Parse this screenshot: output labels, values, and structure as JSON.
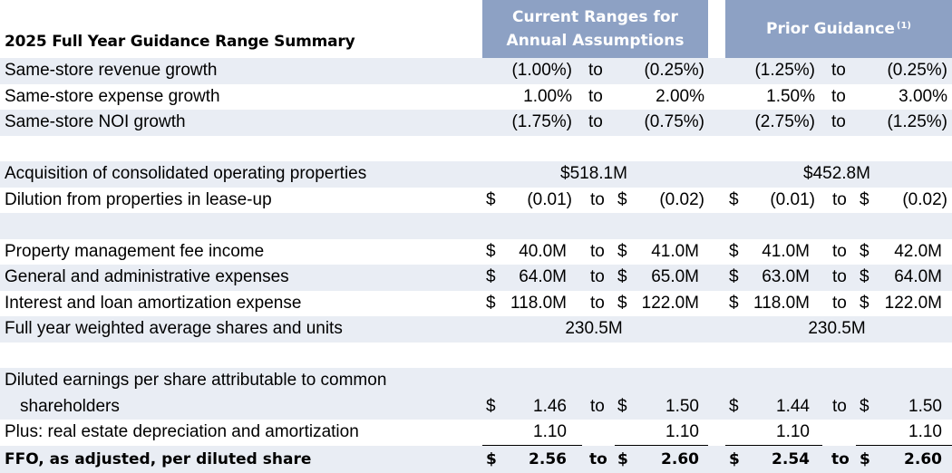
{
  "header": {
    "title": "2025 Full Year Guidance Range Summary",
    "current_line1": "Current Ranges for",
    "current_line2": "Annual Assumptions",
    "prior_label": "Prior Guidance",
    "prior_footnote": "(1)"
  },
  "rows": {
    "rev": {
      "label": "Same-store revenue growth",
      "c_lo": "(1.00%)",
      "c_to": "to",
      "c_hi": "(0.25%)",
      "p_lo": "(1.25%)",
      "p_to": "to",
      "p_hi": "(0.25%)"
    },
    "exp": {
      "label": "Same-store expense growth",
      "c_lo": "1.00%",
      "c_to": "to",
      "c_hi": "2.00%",
      "p_lo": "1.50%",
      "p_to": "to",
      "p_hi": "3.00%"
    },
    "noi": {
      "label": "Same-store NOI growth",
      "c_lo": "(1.75%)",
      "c_to": "to",
      "c_hi": "(0.75%)",
      "p_lo": "(2.75%)",
      "p_to": "to",
      "p_hi": "(1.25%)"
    },
    "acq": {
      "label": "Acquisition of consolidated operating properties",
      "c": "$518.1M",
      "p": "$452.8M"
    },
    "dil": {
      "label": "Dilution from properties in lease-up",
      "c_d1": "$",
      "c_lo": "(0.01)",
      "c_to": "to",
      "c_d2": "$",
      "c_hi": "(0.02)",
      "p_d1": "$",
      "p_lo": "(0.01)",
      "p_to": "to",
      "p_d2": "$",
      "p_hi": "(0.02)"
    },
    "fee": {
      "label": "Property management fee income",
      "c_d1": "$",
      "c_lo": "40.0M",
      "c_to": "to",
      "c_d2": "$",
      "c_hi": "41.0M",
      "p_d1": "$",
      "p_lo": "41.0M",
      "p_to": "to",
      "p_d2": "$",
      "p_hi": "42.0M"
    },
    "gna": {
      "label": "General and administrative expenses",
      "c_d1": "$",
      "c_lo": "64.0M",
      "c_to": "to",
      "c_d2": "$",
      "c_hi": "65.0M",
      "p_d1": "$",
      "p_lo": "63.0M",
      "p_to": "to",
      "p_d2": "$",
      "p_hi": "64.0M"
    },
    "int": {
      "label": "Interest and loan amortization expense",
      "c_d1": "$",
      "c_lo": "118.0M",
      "c_to": "to",
      "c_d2": "$",
      "c_hi": "122.0M",
      "p_d1": "$",
      "p_lo": "118.0M",
      "p_to": "to",
      "p_d2": "$",
      "p_hi": "122.0M"
    },
    "shr": {
      "label": "Full year weighted average shares and units",
      "c": "230.5M",
      "p": "230.5M"
    },
    "eps": {
      "label1": "Diluted earnings per share attributable to common",
      "label2": "shareholders",
      "c_d1": "$",
      "c_lo": "1.46",
      "c_to": "to",
      "c_d2": "$",
      "c_hi": "1.50",
      "p_d1": "$",
      "p_lo": "1.44",
      "p_to": "to",
      "p_d2": "$",
      "p_hi": "1.50"
    },
    "dep": {
      "label": "Plus: real estate depreciation and amortization",
      "c_lo": "1.10",
      "c_hi": "1.10",
      "p_lo": "1.10",
      "p_hi": "1.10"
    },
    "ffo": {
      "label": "FFO, as adjusted, per diluted share",
      "c_d1": "$",
      "c_lo": "2.56",
      "c_to": "to",
      "c_d2": "$",
      "c_hi": "2.60",
      "p_d1": "$",
      "p_lo": "2.54",
      "p_to": "to",
      "p_d2": "$",
      "p_hi": "2.60"
    }
  }
}
